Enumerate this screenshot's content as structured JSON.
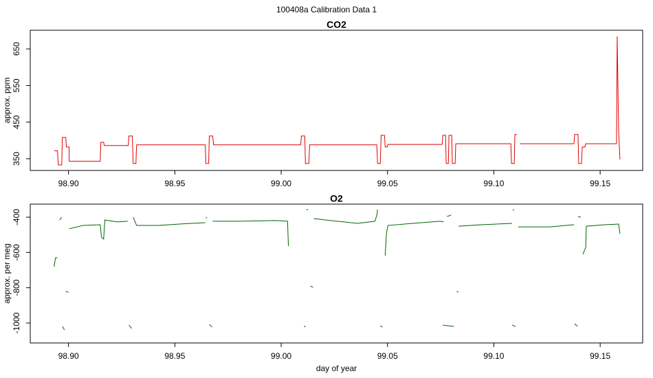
{
  "title": "100408a   Calibration Data 1",
  "chart_data": [
    {
      "type": "line",
      "title": "CO2",
      "ylabel": "approx. ppm",
      "color": "#e00000",
      "xlim": [
        98.882,
        99.17
      ],
      "ylim": [
        318,
        701
      ],
      "xticks": [
        {
          "value": 98.9,
          "label": "98.90"
        },
        98.95,
        {
          "value": 99.0,
          "label": "99.00"
        },
        99.05,
        {
          "value": 99.1,
          "label": "99.10"
        },
        99.15
      ],
      "yticks": [
        350,
        450,
        550,
        650
      ],
      "x": [
        98.8932,
        98.8948,
        98.8952,
        98.8968,
        98.8971,
        98.8987,
        98.899,
        98.9003,
        98.9003,
        98.9149,
        98.9152,
        98.9165,
        98.9168,
        98.9281,
        98.9284,
        98.93,
        98.9304,
        98.9317,
        98.932,
        98.9643,
        98.9646,
        98.9659,
        98.9662,
        98.9678,
        98.9682,
        99.0092,
        99.0095,
        99.0111,
        99.0114,
        99.013,
        99.0134,
        99.045,
        99.0453,
        99.0466,
        99.047,
        99.0486,
        99.0489,
        99.0499,
        99.0502,
        99.0757,
        99.076,
        99.0773,
        99.0776,
        99.0786,
        99.0789,
        99.0802,
        99.0805,
        99.0818,
        99.0821,
        99.108,
        99.1083,
        99.1096,
        99.1099,
        99.1109,
        99.1115,
        99.1122,
        99.1377,
        99.138,
        99.1396,
        99.1399,
        99.1412,
        99.1416,
        99.1428,
        99.1432,
        99.1577,
        99.158,
        99.1587,
        99.1593
      ],
      "values": [
        372,
        372,
        333,
        333,
        408,
        408,
        382,
        382,
        343,
        343,
        395,
        395,
        386,
        386,
        412,
        412,
        337,
        337,
        388,
        388,
        337,
        337,
        412,
        412,
        388,
        388,
        412,
        412,
        337,
        337,
        388,
        388,
        337,
        337,
        414,
        414,
        382,
        382,
        389,
        389,
        414,
        414,
        337,
        337,
        414,
        414,
        337,
        337,
        391,
        391,
        337,
        337,
        416,
        416,
        null,
        391,
        391,
        416,
        416,
        337,
        337,
        382,
        382,
        391,
        391,
        684,
        425,
        348
      ]
    },
    {
      "type": "line",
      "title": "O2",
      "ylabel": "approx. per meg",
      "xlabel": "day of year",
      "color": "#006400",
      "xlim": [
        98.882,
        99.17
      ],
      "ylim": [
        -1113,
        -326
      ],
      "xticks": [
        {
          "value": 98.9,
          "label": "98.90"
        },
        98.95,
        {
          "value": 99.0,
          "label": "99.00"
        },
        99.05,
        {
          "value": 99.1,
          "label": "99.10"
        },
        99.15
      ],
      "yticks": [
        -400,
        -600,
        -800,
        -1000
      ],
      "x": [
        98.8932,
        98.8939,
        98.8948,
        null,
        98.8958,
        98.8968,
        null,
        98.8971,
        98.8981,
        null,
        98.8987,
        98.9,
        null,
        98.9003,
        98.9068,
        98.9149,
        98.9155,
        98.9165,
        98.9171,
        98.9229,
        98.9278,
        null,
        98.9284,
        98.9297,
        null,
        98.9304,
        98.932,
        98.9423,
        98.952,
        98.9643,
        null,
        98.9646,
        98.9649,
        null,
        98.9662,
        98.9675,
        null,
        98.9678,
        98.9811,
        98.9972,
        99.003,
        99.0034,
        null,
        99.0108,
        99.0114,
        null,
        99.0118,
        99.0127,
        null,
        99.0137,
        99.015,
        null,
        99.0153,
        99.0231,
        99.036,
        99.0441,
        99.045,
        99.0453,
        null,
        99.0466,
        99.0476,
        null,
        99.0489,
        99.0495,
        99.0502,
        99.0618,
        99.0748,
        99.0764,
        null,
        99.076,
        99.0812,
        null,
        99.078,
        99.0799,
        null,
        99.0825,
        99.0834,
        null,
        99.0834,
        99.0941,
        99.1086,
        null,
        99.1086,
        99.1102,
        null,
        99.1089,
        99.1096,
        null,
        99.1115,
        99.1263,
        99.1377,
        null,
        99.138,
        99.1393,
        null,
        99.1396,
        99.1409,
        null,
        99.1419,
        99.1432,
        99.1435,
        99.1522,
        99.1587,
        99.1593
      ],
      "values": [
        -681,
        -630,
        -630,
        null,
        -416,
        -400,
        null,
        -1019,
        -1039,
        null,
        -821,
        -825,
        null,
        -466,
        -447,
        -443,
        -513,
        -524,
        -416,
        -427,
        -423,
        null,
        -1012,
        -1031,
        null,
        -400,
        -447,
        -447,
        -439,
        -431,
        null,
        -400,
        -408,
        null,
        -1008,
        -1023,
        null,
        -423,
        -423,
        -419,
        -423,
        -564,
        null,
        -1016,
        -1023,
        null,
        -357,
        -357,
        null,
        -790,
        -798,
        null,
        -408,
        -419,
        -435,
        -423,
        -388,
        -357,
        null,
        -1016,
        -1023,
        null,
        -618,
        -494,
        -447,
        -435,
        -423,
        -427,
        null,
        -1012,
        -1019,
        null,
        -396,
        -388,
        null,
        -821,
        -825,
        null,
        -451,
        -443,
        -435,
        null,
        -1012,
        -1019,
        null,
        -357,
        -361,
        null,
        -455,
        -455,
        -443,
        null,
        -1004,
        -1019,
        null,
        -396,
        -400,
        null,
        -610,
        -571,
        -451,
        -443,
        -439,
        -494
      ]
    }
  ]
}
